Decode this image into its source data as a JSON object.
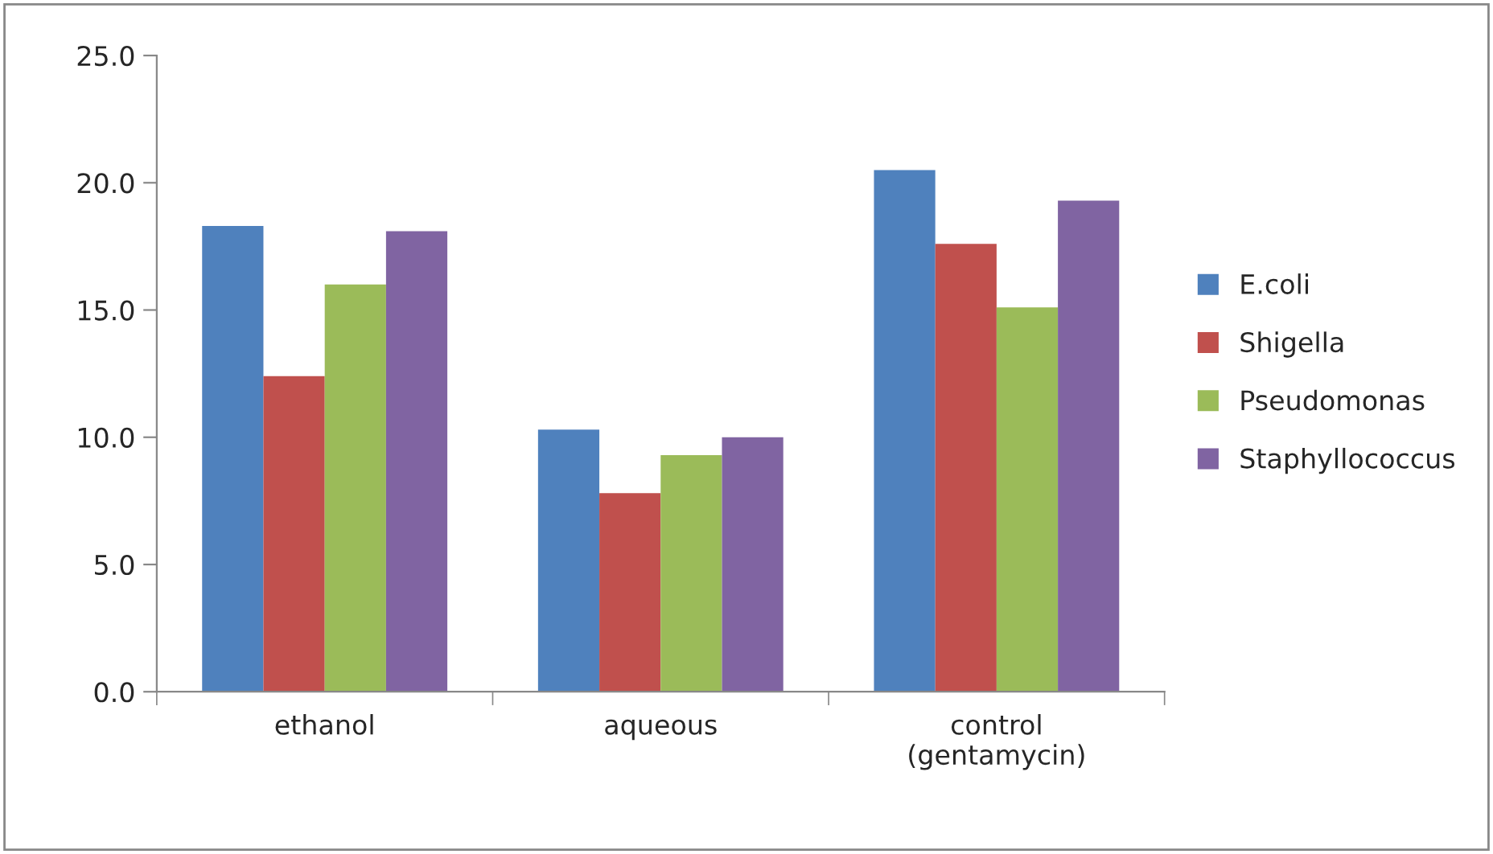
{
  "chart_data": {
    "type": "bar",
    "categories": [
      "ethanol",
      "aqueous",
      "control\n(gentamycin)"
    ],
    "series": [
      {
        "name": "E.coli",
        "color": "#4f81bd",
        "values": [
          18.3,
          10.3,
          20.5
        ]
      },
      {
        "name": "Shigella",
        "color": "#c0504d",
        "values": [
          12.4,
          7.8,
          17.6
        ]
      },
      {
        "name": "Pseudomonas",
        "color": "#9bbb59",
        "values": [
          16.0,
          9.3,
          15.1
        ]
      },
      {
        "name": "Staphyllococcus",
        "color": "#8064a2",
        "values": [
          18.1,
          10.0,
          19.3
        ]
      }
    ],
    "ylim": [
      0,
      25
    ],
    "yticks": [
      {
        "value": 0,
        "label": "0.0"
      },
      {
        "value": 5,
        "label": "5.0"
      },
      {
        "value": 10,
        "label": "10.0"
      },
      {
        "value": 15,
        "label": "15.0"
      },
      {
        "value": 20,
        "label": "20.0"
      },
      {
        "value": 25,
        "label": "25.0"
      }
    ],
    "grid": false,
    "legend": "right"
  }
}
